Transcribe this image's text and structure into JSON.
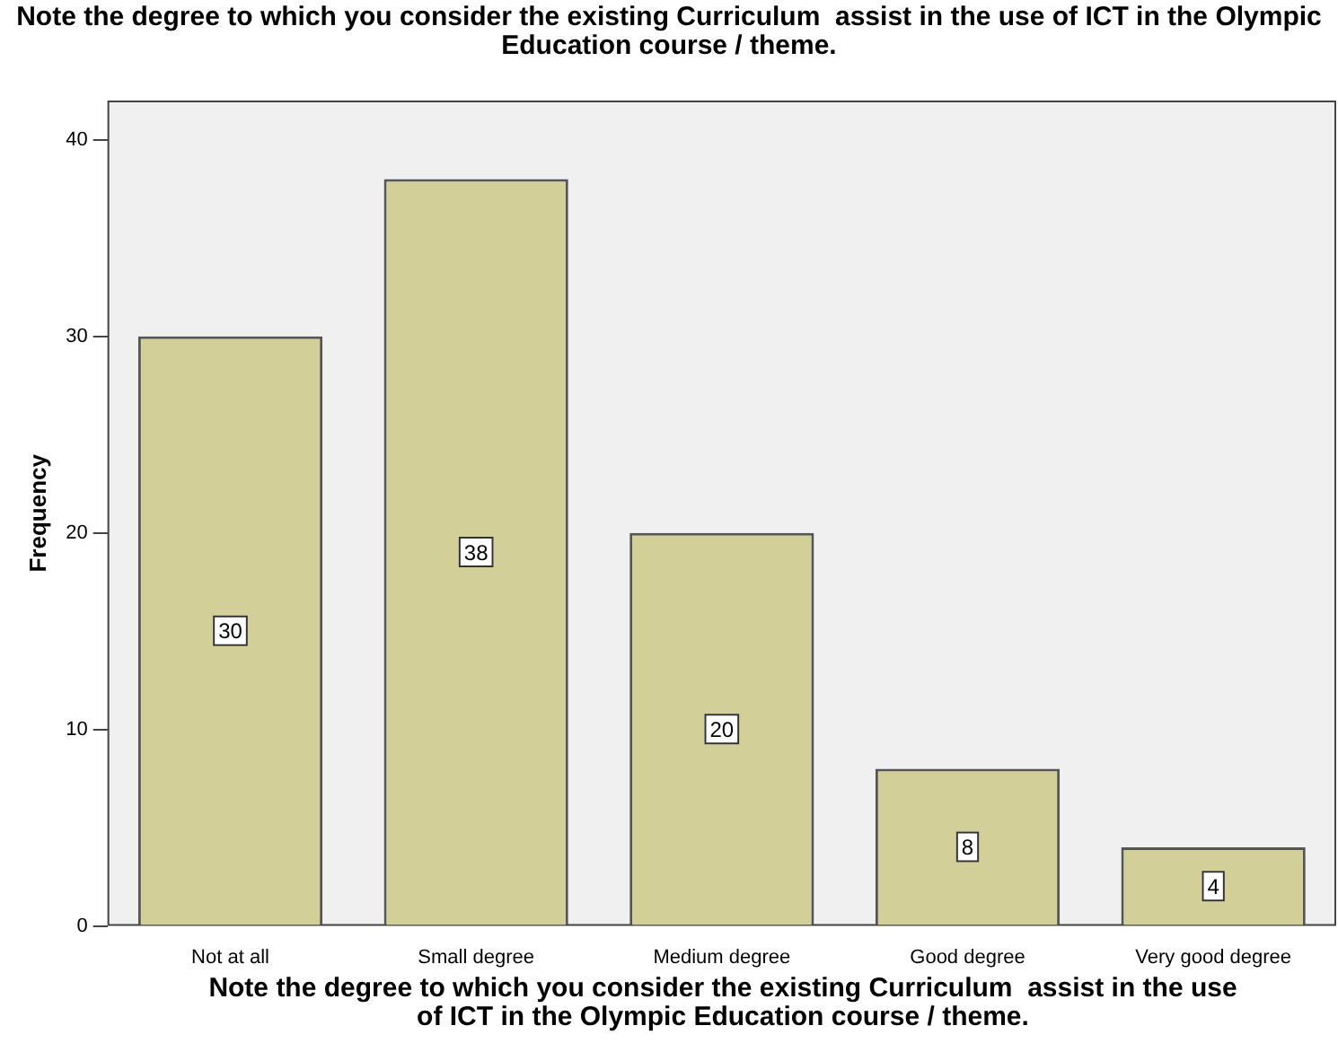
{
  "chart_data": {
    "type": "bar",
    "title": "Note the degree to which you consider the existing Curriculum  assist in the use of ICT in the Olympic Education course / theme.",
    "xlabel": "Note the degree to which you consider the existing Curriculum  assist in the use of ICT in the Olympic Education course / theme.",
    "ylabel": "Frequency",
    "categories": [
      "Not at all",
      "Small degree",
      "Medium degree",
      "Good degree",
      "Very good degree"
    ],
    "values": [
      30,
      38,
      20,
      8,
      4
    ],
    "color": "#d3cf99",
    "ylim": [
      0,
      42
    ],
    "yticks": [
      0,
      10,
      20,
      30,
      40
    ],
    "grid": false,
    "legend": false,
    "data_labels": true
  }
}
